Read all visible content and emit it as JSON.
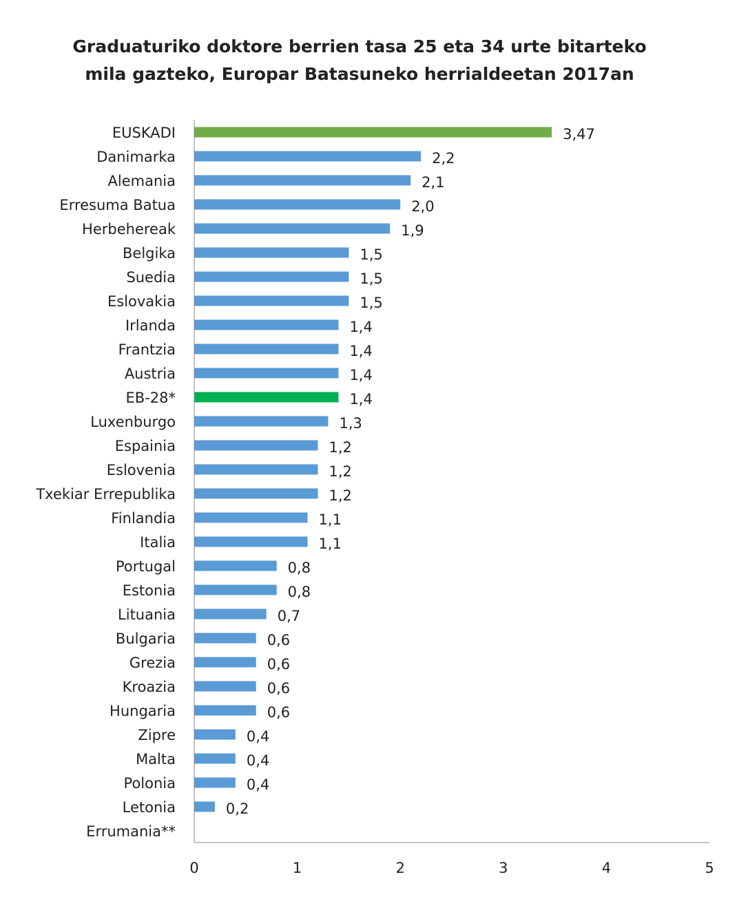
{
  "chart_data": {
    "type": "bar",
    "orientation": "horizontal",
    "title": "Graduaturiko doktore berrien tasa 25 eta 34 urte bitarteko mila gazteko, Europar Batasuneko herrialdeetan 2017an",
    "title_lines": [
      "Graduaturiko doktore berrien tasa 25 eta 34 urte bitarteko",
      "mila gazteko, Europar Batasuneko herrialdeetan 2017an"
    ],
    "categories": [
      "EUSKADI",
      "Danimarka",
      "Alemania",
      "Erresuma Batua",
      "Herbehereak",
      "Belgika",
      "Suedia",
      "Eslovakia",
      "Irlanda",
      "Frantzia",
      "Austria",
      "EB-28*",
      "Luxenburgo",
      "Espainia",
      "Eslovenia",
      "Txekiar Errepublika",
      "Finlandia",
      "Italia",
      "Portugal",
      "Estonia",
      "Lituania",
      "Bulgaria",
      "Grezia",
      "Kroazia",
      "Hungaria",
      "Zipre",
      "Malta",
      "Polonia",
      "Letonia",
      "Errumania**"
    ],
    "values": [
      3.47,
      2.2,
      2.1,
      2.0,
      1.9,
      1.5,
      1.5,
      1.5,
      1.4,
      1.4,
      1.4,
      1.4,
      1.3,
      1.2,
      1.2,
      1.2,
      1.1,
      1.1,
      0.8,
      0.8,
      0.7,
      0.6,
      0.6,
      0.6,
      0.6,
      0.4,
      0.4,
      0.4,
      0.2,
      null
    ],
    "data_labels": [
      "3,47",
      "2,2",
      "2,1",
      "2,0",
      "1,9",
      "1,5",
      "1,5",
      "1,5",
      "1,4",
      "1,4",
      "1,4",
      "1,4",
      "1,3",
      "1,2",
      "1,2",
      "1,2",
      "1,1",
      "1,1",
      "0,8",
      "0,8",
      "0,7",
      "0,6",
      "0,6",
      "0,6",
      "0,6",
      "0,4",
      "0,4",
      "0,4",
      "0,2",
      ""
    ],
    "xlim": [
      0,
      5
    ],
    "xticks": [
      "0",
      "1",
      "2",
      "3",
      "4",
      "5"
    ],
    "grid": false,
    "legend": "none",
    "colors": {
      "default": "#5b9bd5",
      "EUSKADI": "#70ad47",
      "EB-28*": "#00b050",
      "axis": "#888888"
    }
  }
}
